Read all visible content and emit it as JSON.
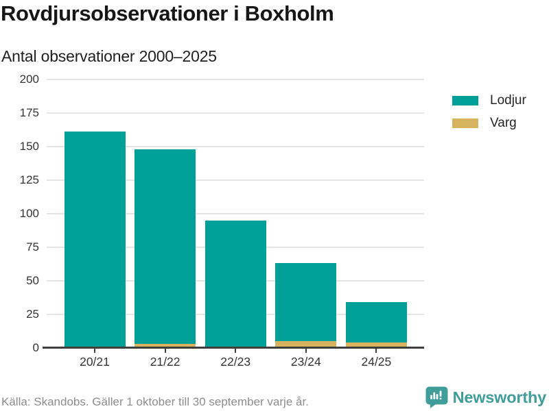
{
  "header": {
    "title": "Rovdjursobservationer i Boxholm",
    "subtitle": "Antal observationer 2000–2025"
  },
  "chart_data": {
    "type": "bar",
    "stacked": true,
    "title": "Rovdjursobservationer i Boxholm",
    "subtitle": "Antal observationer 2000–2025",
    "categories": [
      "20/21",
      "21/22",
      "22/23",
      "23/24",
      "24/25"
    ],
    "series": [
      {
        "name": "Lodjur",
        "color": "#00a099",
        "values": [
          161,
          145,
          95,
          58,
          30
        ]
      },
      {
        "name": "Varg",
        "color": "#d8b35f",
        "values": [
          0,
          3,
          0,
          5,
          4
        ]
      }
    ],
    "stack_totals": [
      161,
      148,
      95,
      63,
      34
    ],
    "xlabel": "",
    "ylabel": "Antal observationer",
    "ylim": [
      0,
      200
    ],
    "yticks": [
      0,
      25,
      50,
      75,
      100,
      125,
      150,
      175,
      200
    ],
    "grid": "horizontal",
    "legend_position": "right",
    "grid_color": "#e4e4e4",
    "axis_color": "#3e3e3e"
  },
  "footer": {
    "source": "Källa: Skandobs. Gäller 1 oktober till 30 september varje år.",
    "brand": "Newsworthy",
    "brand_color": "#3f9d9a"
  }
}
